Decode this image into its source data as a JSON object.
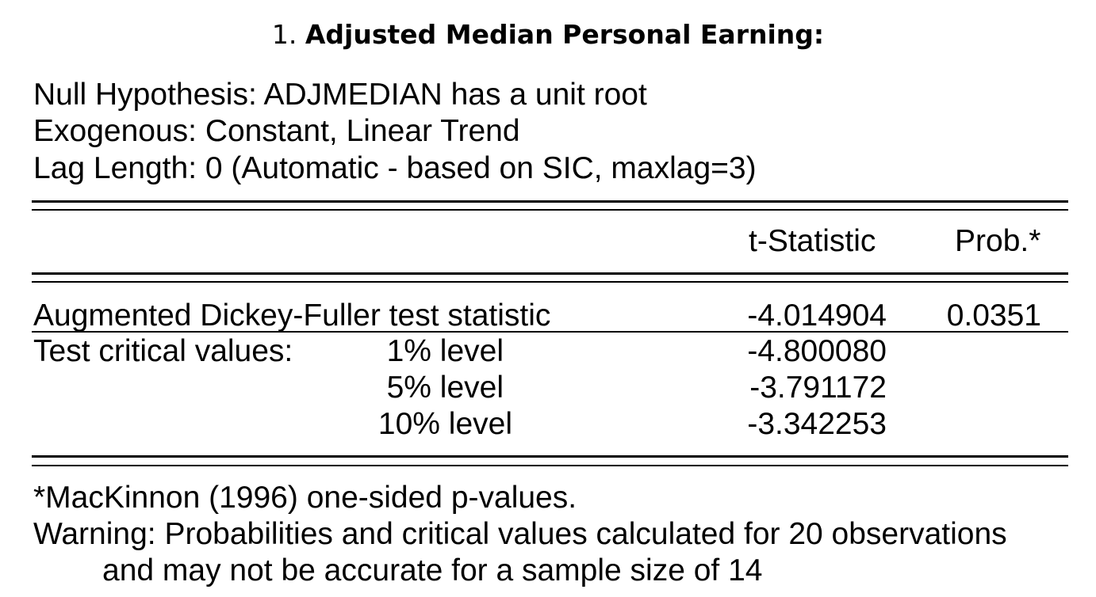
{
  "heading": {
    "number": "1.",
    "title": "Adjusted Median Personal Earning:"
  },
  "header_lines": {
    "null_hypothesis": "Null Hypothesis: ADJMEDIAN has a unit root",
    "exogenous": "Exogenous: Constant, Linear Trend",
    "lag_length": "Lag Length: 0 (Automatic - based on SIC, maxlag=3)"
  },
  "table": {
    "columns": {
      "t_statistic": "t-Statistic",
      "prob": "Prob.*"
    },
    "adf_row": {
      "label": "Augmented Dickey-Fuller test statistic",
      "t_statistic": "-4.014904",
      "prob": "0.0351"
    },
    "critical_values": {
      "label": "Test critical values:",
      "rows": [
        {
          "level": "1% level",
          "value": "-4.800080"
        },
        {
          "level": "5% level",
          "value": "-3.791172"
        },
        {
          "level": "10% level",
          "value": "-3.342253"
        }
      ]
    }
  },
  "footnotes": {
    "mackinnon": "*MacKinnon (1996) one-sided p-values.",
    "warning_line1": "Warning: Probabilities and critical values calculated for 20 observations",
    "warning_line2": "and may not be accurate for a sample size of 14"
  }
}
